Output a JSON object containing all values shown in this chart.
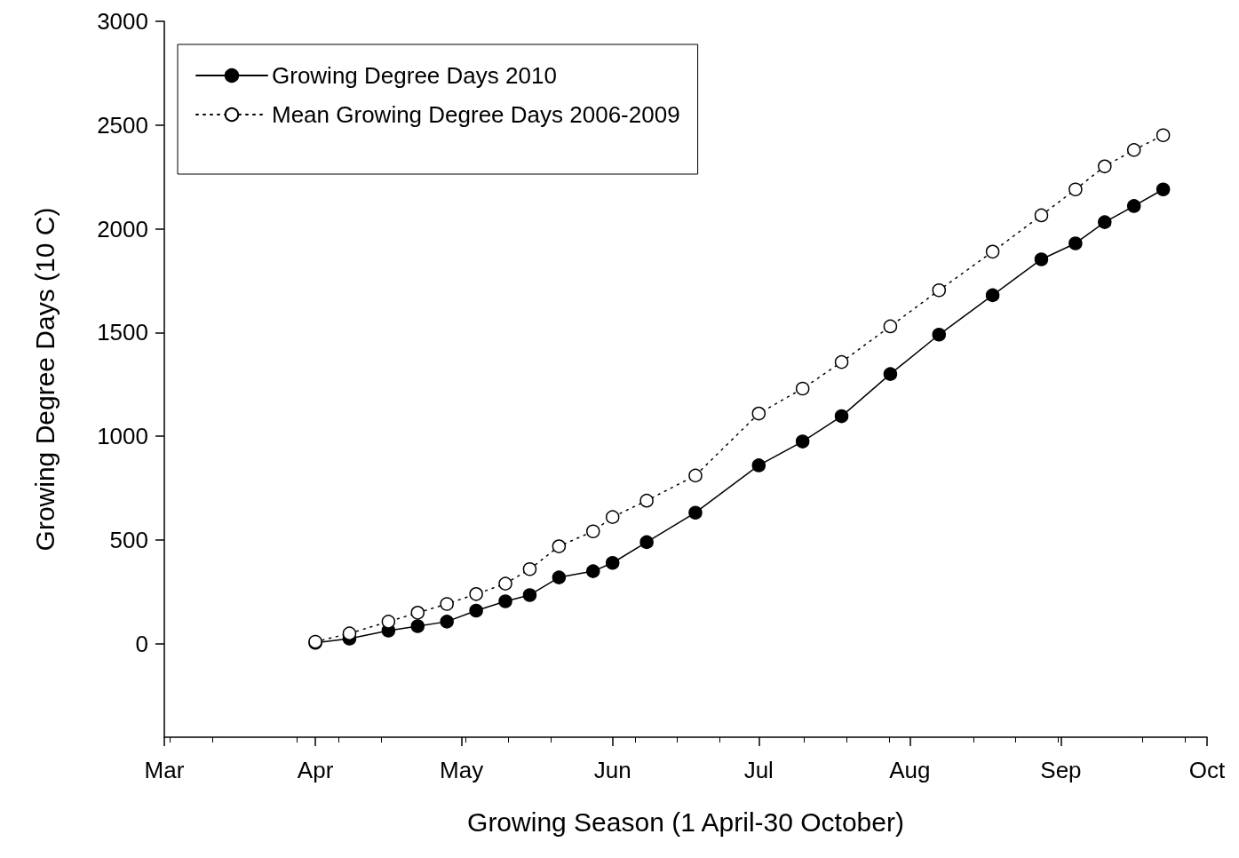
{
  "chart_data": {
    "type": "line",
    "xlabel": "Growing Season (1 April-30 October)",
    "ylabel": "Growing Degree Days (10 C)",
    "xlim": [
      "2010-03-01",
      "2010-10-01"
    ],
    "xticks": [
      {
        "value": "2010-03-01",
        "label": "Mar"
      },
      {
        "value": "2010-04-01",
        "label": "Apr"
      },
      {
        "value": "2010-05-01",
        "label": "May"
      },
      {
        "value": "2010-06-01",
        "label": "Jun"
      },
      {
        "value": "2010-07-01",
        "label": "Jul"
      },
      {
        "value": "2010-08-01",
        "label": "Aug"
      },
      {
        "value": "2010-09-01",
        "label": "Sep"
      },
      {
        "value": "2010-10-01",
        "label": "Oct"
      }
    ],
    "ylim": [
      -450,
      3000
    ],
    "yticks": [
      0,
      500,
      1000,
      1500,
      2000,
      2500,
      3000
    ],
    "x": [
      "2010-04-01",
      "2010-04-08",
      "2010-04-16",
      "2010-04-22",
      "2010-04-28",
      "2010-05-04",
      "2010-05-10",
      "2010-05-15",
      "2010-05-21",
      "2010-05-28",
      "2010-06-01",
      "2010-06-08",
      "2010-06-18",
      "2010-07-01",
      "2010-07-10",
      "2010-07-18",
      "2010-07-28",
      "2010-08-07",
      "2010-08-18",
      "2010-08-28",
      "2010-09-04",
      "2010-09-10",
      "2010-09-16",
      "2010-09-22"
    ],
    "series": [
      {
        "name": "Growing Degree Days 2010",
        "color": "#000000",
        "line_style": "solid",
        "values": [
          5,
          25,
          64,
          85,
          107,
          160,
          205,
          235,
          320,
          350,
          390,
          490,
          632,
          860,
          975,
          1097,
          1300,
          1490,
          1680,
          1853,
          1930,
          2032,
          2110,
          2190
        ]
      },
      {
        "name": "Mean Growing Degree Days 2006-2009",
        "color": "#ffffff",
        "line_style": "dotted",
        "values": [
          10,
          50,
          107,
          150,
          192,
          240,
          290,
          360,
          470,
          542,
          611,
          690,
          811,
          1110,
          1230,
          1358,
          1530,
          1704,
          1890,
          2065,
          2190,
          2301,
          2380,
          2451
        ]
      }
    ],
    "marker": "circle",
    "legend": "top left",
    "grid": false
  }
}
